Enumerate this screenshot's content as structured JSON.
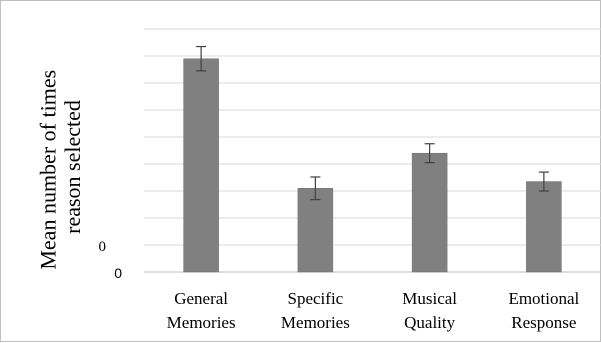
{
  "chart_data": {
    "type": "bar",
    "title": "",
    "xlabel": "",
    "ylabel": [
      "Mean number of times",
      "reason selected"
    ],
    "categories": [
      [
        "General",
        "Memories"
      ],
      [
        "Specific",
        "Memories"
      ],
      [
        "Musical",
        "Quality"
      ],
      [
        "Emotional",
        "Response"
      ]
    ],
    "values": [
      7.9,
      3.1,
      4.4,
      3.35
    ],
    "error": [
      0.45,
      0.42,
      0.35,
      0.35
    ],
    "ylim": [
      0,
      9
    ],
    "ytick_labels": [
      "0",
      "0"
    ],
    "grid": true,
    "legend": "none",
    "colors": {
      "bar": "#808080",
      "bar_stroke": "#6f6f6f",
      "grid": "#d9d9d9",
      "axis": "#bfbfbf",
      "error": "#404040"
    }
  }
}
